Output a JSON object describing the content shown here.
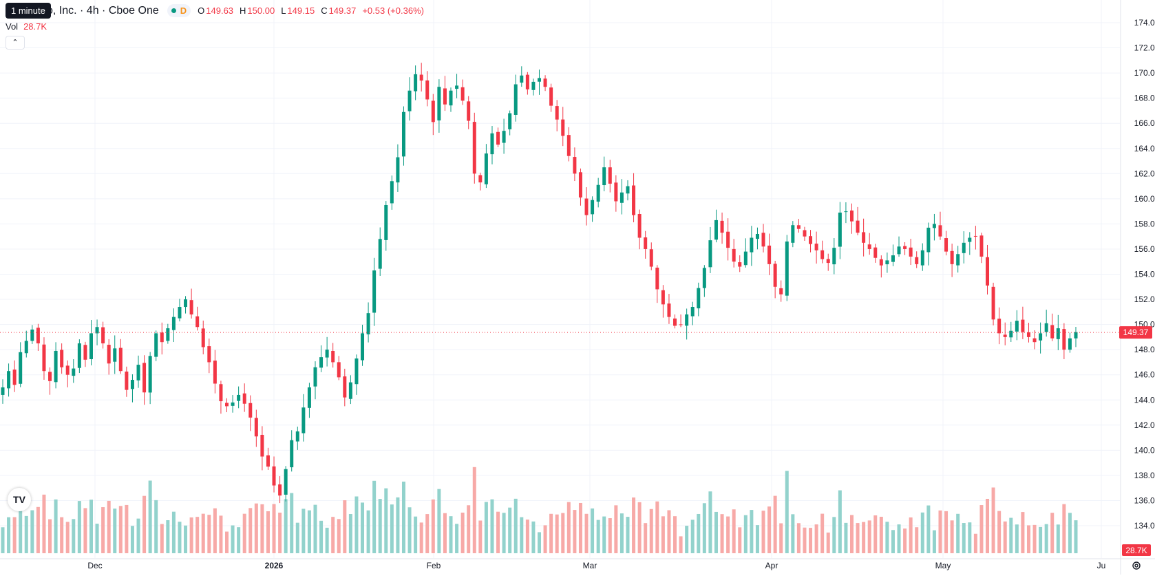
{
  "header": {
    "symbol_title": "o, Inc. · 4h · Cboe One",
    "tooltip": "1 minute",
    "session_badge": "D",
    "open_label": "O",
    "open_value": "149.63",
    "high_label": "H",
    "high_value": "150.00",
    "low_label": "L",
    "low_value": "149.15",
    "close_label": "C",
    "close_value": "149.37",
    "change": "+0.53 (+0.36%)",
    "volume_label": "Vol",
    "volume_value": "28.7K",
    "collapse_icon": "chevron-up-icon"
  },
  "price_tag": "149.37",
  "volume_tag": "28.7K",
  "colors": {
    "up": "#089981",
    "down": "#f23645",
    "up_vol": "#92d2cc",
    "down_vol": "#f7a9a7"
  },
  "chart_data": {
    "type": "candlestick",
    "y_ticks": [
      "134.00",
      "136.00",
      "138.00",
      "140.00",
      "142.00",
      "144.00",
      "146.00",
      "148.00",
      "150.00",
      "152.00",
      "154.00",
      "156.00",
      "158.00",
      "160.00",
      "162.00",
      "164.00",
      "166.00",
      "168.00",
      "170.00",
      "172.00",
      "174.00"
    ],
    "ylim": [
      132.2,
      175.3
    ],
    "x_ticks": [
      "Dec",
      "2026",
      "Feb",
      "Mar",
      "Apr",
      "May",
      "Ju"
    ],
    "last_price": 149.37,
    "grid": true,
    "closes": [
      145.0,
      146.3,
      145.2,
      147.8,
      148.7,
      149.6,
      148.5,
      146.3,
      145.5,
      147.9,
      146.6,
      146.0,
      146.5,
      148.5,
      147.2,
      149.3,
      149.8,
      148.5,
      146.9,
      148.1,
      146.3,
      144.8,
      145.6,
      146.8,
      144.6,
      147.5,
      149.3,
      148.6,
      149.7,
      150.6,
      151.4,
      152.0,
      150.8,
      149.8,
      148.2,
      147.0,
      145.3,
      143.9,
      143.5,
      143.8,
      144.4,
      143.7,
      142.6,
      141.1,
      139.5,
      138.7,
      137.2,
      136.4,
      138.5,
      140.8,
      141.5,
      143.4,
      145.0,
      146.6,
      147.4,
      148.0,
      147.0,
      145.8,
      144.2,
      145.4,
      147.3,
      149.3,
      150.9,
      154.3,
      156.8,
      159.5,
      161.4,
      163.3,
      166.9,
      168.6,
      169.9,
      169.4,
      167.9,
      166.1,
      168.9,
      167.5,
      168.6,
      169.0,
      167.8,
      166.2,
      162.0,
      161.3,
      163.6,
      165.2,
      164.3,
      165.4,
      166.8,
      169.1,
      169.8,
      168.7,
      169.3,
      169.6,
      168.9,
      167.4,
      166.3,
      165.0,
      163.4,
      162.0,
      160.1,
      158.7,
      159.9,
      161.1,
      162.5,
      161.2,
      159.8,
      160.5,
      161.0,
      158.7,
      156.9,
      156.0,
      154.6,
      152.8,
      151.6,
      150.6,
      149.9,
      150.0,
      150.8,
      151.4,
      152.9,
      154.5,
      156.7,
      158.3,
      157.3,
      156.1,
      155.0,
      154.6,
      155.8,
      156.9,
      157.2,
      156.2,
      154.8,
      153.0,
      152.4,
      156.6,
      157.9,
      157.6,
      157.0,
      156.4,
      155.9,
      155.2,
      154.9,
      156.1,
      158.9,
      159.0,
      158.2,
      157.3,
      156.5,
      156.0,
      155.3,
      154.7,
      155.1,
      155.5,
      156.2,
      156.0,
      155.4,
      154.8,
      155.9,
      157.7,
      158.0,
      157.0,
      155.8,
      154.8,
      155.6,
      156.5,
      156.9,
      157.0,
      155.4,
      153.1,
      150.4,
      149.3,
      149.0,
      149.5,
      150.3,
      149.4,
      149.0,
      148.6,
      149.3,
      150.1,
      148.9,
      149.7,
      148.0,
      148.9,
      149.4
    ],
    "volume_unit_label": "28.7K"
  }
}
